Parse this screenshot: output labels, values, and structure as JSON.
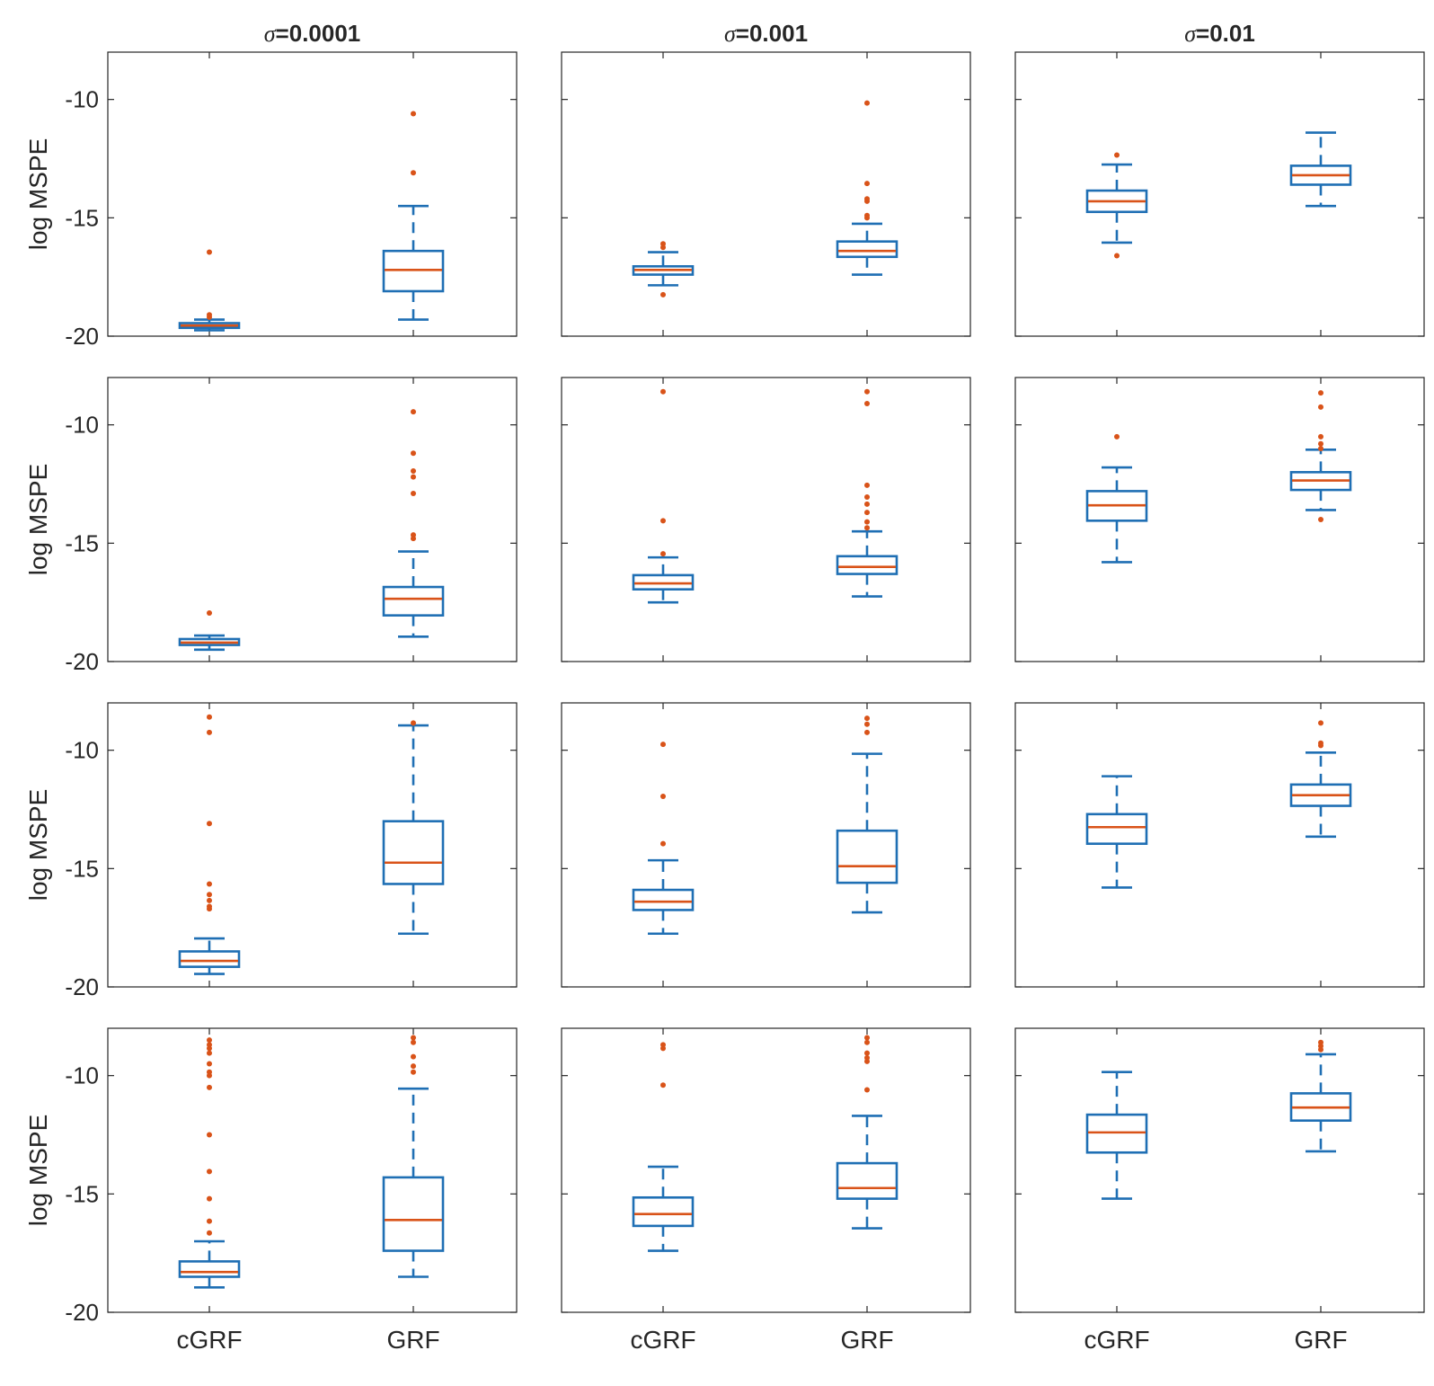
{
  "chart_data": {
    "type": "box",
    "layout": {
      "rows": 4,
      "cols": 3
    },
    "column_titles": [
      {
        "symbol": "σ",
        "text": "=0.0001"
      },
      {
        "symbol": "σ",
        "text": "=0.001"
      },
      {
        "symbol": "σ",
        "text": "=0.01"
      }
    ],
    "ylabel": "log MSPE",
    "ylim": [
      -20,
      -8
    ],
    "yticks": [
      -20,
      -15,
      -10
    ],
    "ytick_labels": [
      "-20",
      "-15",
      "-10"
    ],
    "categories": [
      "cGRF",
      "GRF"
    ],
    "colors": {
      "box": "#1f6fb4",
      "median": "#d95319",
      "outlier": "#d95319",
      "axes": "#262626"
    },
    "panels": [
      {
        "row": 1,
        "col": 1,
        "boxes": [
          {
            "category": "cGRF",
            "whisker_low": -19.75,
            "q1": -19.65,
            "median": -19.55,
            "q3": -19.45,
            "whisker_high": -19.3,
            "outliers": [
              -16.45,
              -19.1,
              -19.2
            ]
          },
          {
            "category": "GRF",
            "whisker_low": -19.3,
            "q1": -18.1,
            "median": -17.2,
            "q3": -16.4,
            "whisker_high": -14.5,
            "outliers": [
              -10.6,
              -13.1
            ]
          }
        ]
      },
      {
        "row": 1,
        "col": 2,
        "boxes": [
          {
            "category": "cGRF",
            "whisker_low": -17.85,
            "q1": -17.4,
            "median": -17.2,
            "q3": -17.05,
            "whisker_high": -16.45,
            "outliers": [
              -18.25,
              -16.1,
              -16.25
            ]
          },
          {
            "category": "GRF",
            "whisker_low": -17.4,
            "q1": -16.65,
            "median": -16.4,
            "q3": -16.0,
            "whisker_high": -15.25,
            "outliers": [
              -10.15,
              -13.55,
              -14.2,
              -14.3,
              -14.9,
              -15.0
            ]
          }
        ]
      },
      {
        "row": 1,
        "col": 3,
        "boxes": [
          {
            "category": "cGRF",
            "whisker_low": -16.05,
            "q1": -14.75,
            "median": -14.3,
            "q3": -13.85,
            "whisker_high": -12.75,
            "outliers": [
              -16.6,
              -12.35
            ]
          },
          {
            "category": "GRF",
            "whisker_low": -14.5,
            "q1": -13.6,
            "median": -13.2,
            "q3": -12.8,
            "whisker_high": -11.4,
            "outliers": []
          }
        ]
      },
      {
        "row": 2,
        "col": 1,
        "boxes": [
          {
            "category": "cGRF",
            "whisker_low": -19.5,
            "q1": -19.3,
            "median": -19.2,
            "q3": -19.05,
            "whisker_high": -18.9,
            "outliers": [
              -17.95
            ]
          },
          {
            "category": "GRF",
            "whisker_low": -18.95,
            "q1": -18.05,
            "median": -17.35,
            "q3": -16.85,
            "whisker_high": -15.35,
            "outliers": [
              -9.45,
              -11.2,
              -11.95,
              -12.2,
              -12.9,
              -14.65,
              -14.8
            ]
          }
        ]
      },
      {
        "row": 2,
        "col": 2,
        "boxes": [
          {
            "category": "cGRF",
            "whisker_low": -17.5,
            "q1": -16.95,
            "median": -16.7,
            "q3": -16.35,
            "whisker_high": -15.6,
            "outliers": [
              -8.6,
              -14.05,
              -15.45
            ]
          },
          {
            "category": "GRF",
            "whisker_low": -17.25,
            "q1": -16.3,
            "median": -16.0,
            "q3": -15.55,
            "whisker_high": -14.5,
            "outliers": [
              -8.6,
              -9.1,
              -12.55,
              -13.05,
              -13.35,
              -13.7,
              -14.1,
              -14.35
            ]
          }
        ]
      },
      {
        "row": 2,
        "col": 3,
        "boxes": [
          {
            "category": "cGRF",
            "whisker_low": -15.8,
            "q1": -14.05,
            "median": -13.4,
            "q3": -12.8,
            "whisker_high": -11.8,
            "outliers": [
              -10.5
            ]
          },
          {
            "category": "GRF",
            "whisker_low": -13.6,
            "q1": -12.75,
            "median": -12.35,
            "q3": -12.0,
            "whisker_high": -11.05,
            "outliers": [
              -8.65,
              -9.25,
              -10.5,
              -10.8,
              -11.0,
              -14.0
            ]
          }
        ]
      },
      {
        "row": 3,
        "col": 1,
        "boxes": [
          {
            "category": "cGRF",
            "whisker_low": -19.45,
            "q1": -19.15,
            "median": -18.9,
            "q3": -18.5,
            "whisker_high": -17.95,
            "outliers": [
              -8.6,
              -9.25,
              -13.1,
              -15.65,
              -16.1,
              -16.35,
              -16.6,
              -16.7
            ]
          },
          {
            "category": "GRF",
            "whisker_low": -17.75,
            "q1": -15.65,
            "median": -14.75,
            "q3": -13.0,
            "whisker_high": -8.95,
            "outliers": [
              -8.85
            ]
          }
        ]
      },
      {
        "row": 3,
        "col": 2,
        "boxes": [
          {
            "category": "cGRF",
            "whisker_low": -17.75,
            "q1": -16.75,
            "median": -16.4,
            "q3": -15.9,
            "whisker_high": -14.65,
            "outliers": [
              -9.75,
              -11.95,
              -13.95
            ]
          },
          {
            "category": "GRF",
            "whisker_low": -16.85,
            "q1": -15.6,
            "median": -14.9,
            "q3": -13.4,
            "whisker_high": -10.15,
            "outliers": [
              -8.65,
              -8.9,
              -9.25
            ]
          }
        ]
      },
      {
        "row": 3,
        "col": 3,
        "boxes": [
          {
            "category": "cGRF",
            "whisker_low": -15.8,
            "q1": -13.95,
            "median": -13.25,
            "q3": -12.7,
            "whisker_high": -11.1,
            "outliers": []
          },
          {
            "category": "GRF",
            "whisker_low": -13.65,
            "q1": -12.35,
            "median": -11.9,
            "q3": -11.45,
            "whisker_high": -10.1,
            "outliers": [
              -8.85,
              -9.7,
              -9.8
            ]
          }
        ]
      },
      {
        "row": 4,
        "col": 1,
        "boxes": [
          {
            "category": "cGRF",
            "whisker_low": -18.95,
            "q1": -18.5,
            "median": -18.3,
            "q3": -17.85,
            "whisker_high": -17.0,
            "outliers": [
              -8.5,
              -8.7,
              -8.85,
              -9.05,
              -9.5,
              -9.85,
              -10.0,
              -10.5,
              -12.5,
              -14.05,
              -15.2,
              -16.15,
              -16.65
            ]
          },
          {
            "category": "GRF",
            "whisker_low": -18.5,
            "q1": -17.4,
            "median": -16.1,
            "q3": -14.3,
            "whisker_high": -10.55,
            "outliers": [
              -8.4,
              -8.6,
              -9.2,
              -9.6,
              -9.85
            ]
          }
        ]
      },
      {
        "row": 4,
        "col": 2,
        "boxes": [
          {
            "category": "cGRF",
            "whisker_low": -17.4,
            "q1": -16.35,
            "median": -15.85,
            "q3": -15.15,
            "whisker_high": -13.85,
            "outliers": [
              -8.7,
              -8.85,
              -10.4
            ]
          },
          {
            "category": "GRF",
            "whisker_low": -16.45,
            "q1": -15.2,
            "median": -14.75,
            "q3": -13.7,
            "whisker_high": -11.7,
            "outliers": [
              -8.4,
              -8.6,
              -9.05,
              -9.25,
              -9.4,
              -10.6
            ]
          }
        ]
      },
      {
        "row": 4,
        "col": 3,
        "boxes": [
          {
            "category": "cGRF",
            "whisker_low": -15.2,
            "q1": -13.25,
            "median": -12.4,
            "q3": -11.65,
            "whisker_high": -9.85,
            "outliers": []
          },
          {
            "category": "GRF",
            "whisker_low": -13.2,
            "q1": -11.9,
            "median": -11.35,
            "q3": -10.75,
            "whisker_high": -9.1,
            "outliers": [
              -8.6,
              -8.75,
              -8.9
            ]
          }
        ]
      }
    ]
  }
}
